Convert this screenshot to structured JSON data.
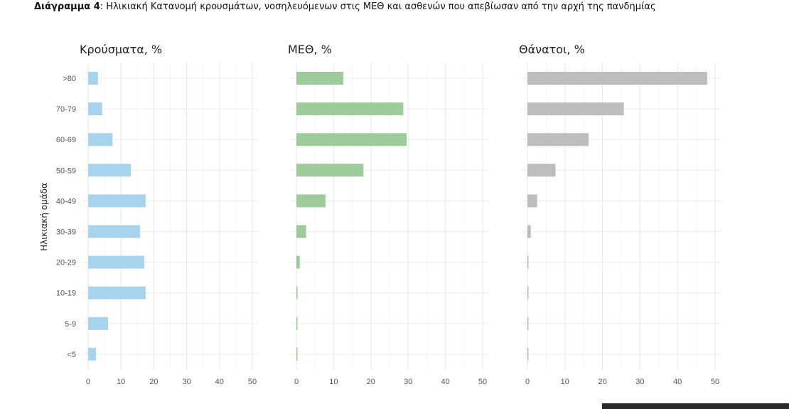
{
  "caption": {
    "bold": "Διάγραμμα 4",
    "rest": ": Ηλικιακή Κατανομή κρουσμάτων, νοσηλευόμενων στις ΜΕΘ και ασθενών που απεβίωσαν από την αρχή της πανδημίας"
  },
  "chart_data": {
    "type": "bar",
    "orientation": "horizontal",
    "ylabel": "Ηλικιακή ομάδα",
    "categories": [
      ">80",
      "70-79",
      "60-69",
      "50-59",
      "40-49",
      "30-39",
      "20-29",
      "10-19",
      "5-9",
      "<5"
    ],
    "grid": true,
    "panels": [
      {
        "title": "Κρούσματα, %",
        "color": "#a6d3ee",
        "xlim": [
          0,
          50
        ],
        "xticks": [
          0,
          10,
          20,
          30,
          40,
          50
        ],
        "values": [
          3.0,
          4.3,
          7.4,
          13.0,
          17.5,
          15.8,
          17.1,
          17.5,
          6.1,
          2.4
        ]
      },
      {
        "title": "ΜΕΘ, %",
        "color": "#9dcc9a",
        "xlim": [
          0,
          50
        ],
        "xticks": [
          0,
          10,
          20,
          30,
          40,
          50
        ],
        "values": [
          12.6,
          28.7,
          29.6,
          18.0,
          7.8,
          2.6,
          0.9,
          0.3,
          0.2,
          0.2
        ]
      },
      {
        "title": "Θάνατοι, %",
        "color": "#bdbdbd",
        "xlim": [
          0,
          50
        ],
        "xticks": [
          0,
          10,
          20,
          30,
          40,
          50
        ],
        "values": [
          47.9,
          25.7,
          16.3,
          7.5,
          2.6,
          0.9,
          0.2,
          0.1,
          0.1,
          0.1
        ]
      }
    ]
  }
}
